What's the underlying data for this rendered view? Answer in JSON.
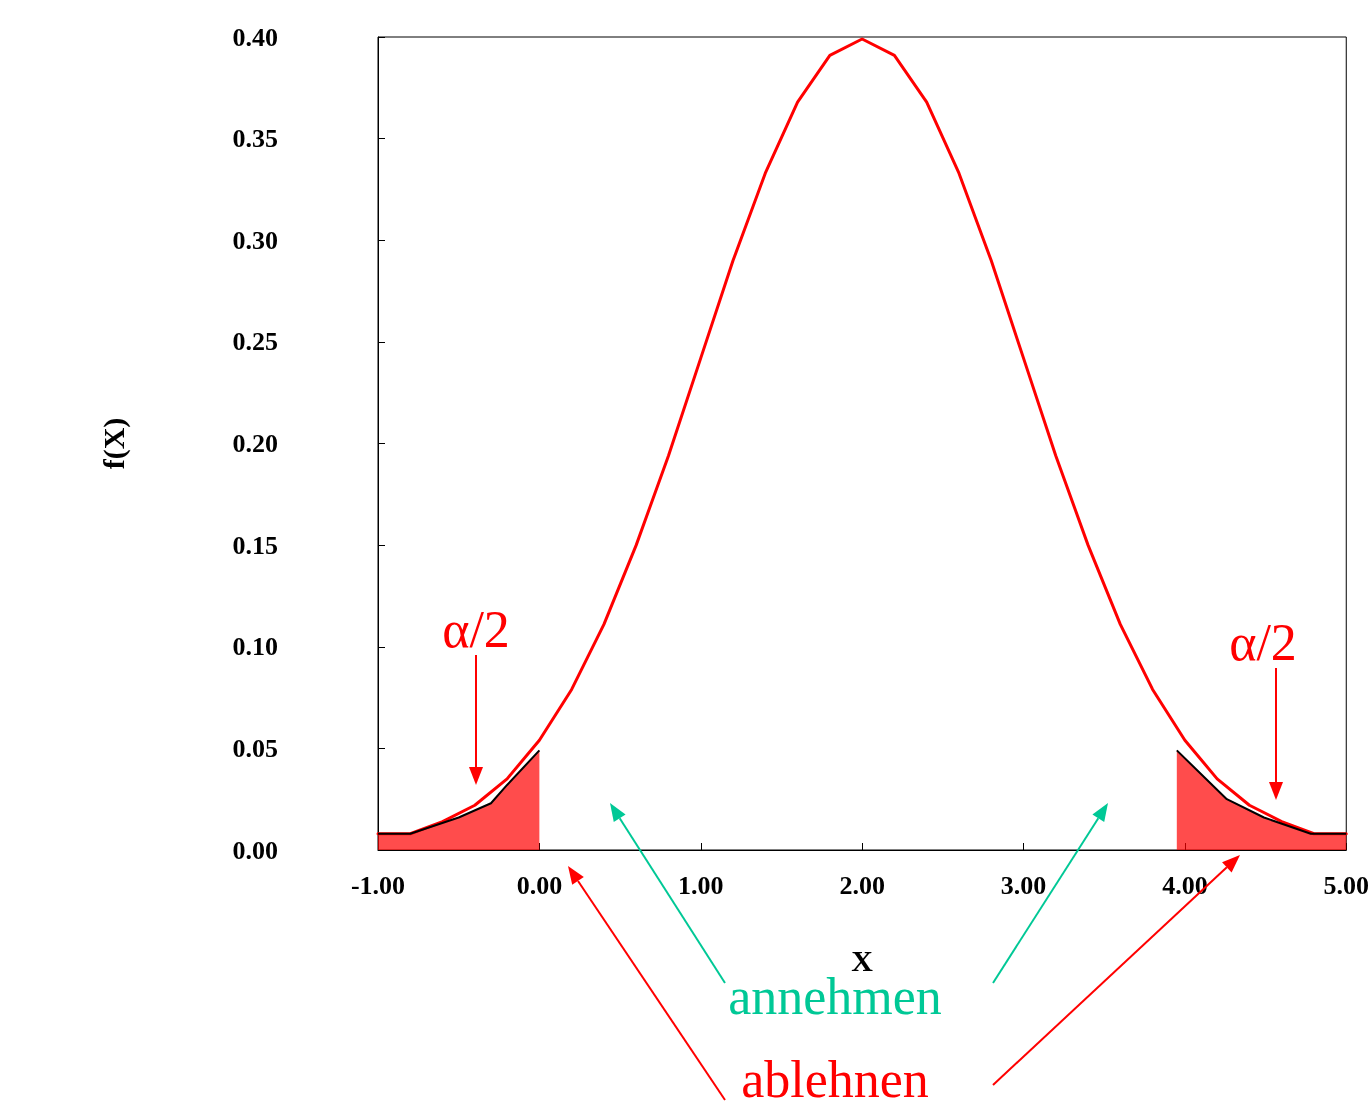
{
  "chart_data": {
    "type": "line",
    "xlabel": "X",
    "ylabel": "f(X)",
    "xlim": [
      -1,
      5
    ],
    "ylim": [
      0,
      0.4
    ],
    "xticks": [
      {
        "value": -1,
        "label": "-1.00"
      },
      {
        "value": 0,
        "label": "0.00"
      },
      {
        "value": 1,
        "label": "1.00"
      },
      {
        "value": 2,
        "label": "2.00"
      },
      {
        "value": 3,
        "label": "3.00"
      },
      {
        "value": 4,
        "label": "4.00"
      },
      {
        "value": 5,
        "label": "5.00"
      }
    ],
    "yticks": [
      {
        "value": 0,
        "label": "0.00"
      },
      {
        "value": 0.05,
        "label": "0.05"
      },
      {
        "value": 0.1,
        "label": "0.10"
      },
      {
        "value": 0.15,
        "label": "0.15"
      },
      {
        "value": 0.2,
        "label": "0.20"
      },
      {
        "value": 0.25,
        "label": "0.25"
      },
      {
        "value": 0.3,
        "label": "0.30"
      },
      {
        "value": 0.35,
        "label": "0.35"
      },
      {
        "value": 0.4,
        "label": "0.40"
      }
    ],
    "grid": false,
    "marker": "none",
    "line_style": "solid",
    "series": [
      {
        "color": "#ff0000",
        "x": [
          -1,
          -0.8,
          -0.6,
          -0.4,
          -0.2,
          0,
          0.2,
          0.4,
          0.6,
          0.8,
          1,
          1.2,
          1.4,
          1.6,
          1.8,
          2,
          2.2,
          2.4,
          2.6,
          2.8,
          3,
          3.2,
          3.4,
          3.6,
          3.8,
          4,
          4.2,
          4.4,
          4.6,
          4.8,
          5
        ],
        "values": [
          0.008,
          0.008,
          0.014,
          0.022,
          0.035,
          0.054,
          0.079,
          0.111,
          0.15,
          0.194,
          0.242,
          0.29,
          0.333,
          0.368,
          0.391,
          0.399,
          0.391,
          0.368,
          0.333,
          0.29,
          0.242,
          0.194,
          0.15,
          0.111,
          0.079,
          0.054,
          0.035,
          0.022,
          0.014,
          0.008,
          0.008
        ]
      },
      {
        "type": "area",
        "color": "#ff0000",
        "x": [
          -1,
          -0.8,
          -0.5,
          -0.3,
          -0.2,
          0
        ],
        "values": [
          0.008,
          0.008,
          0.016,
          0.023,
          0.032,
          0.049
        ]
      },
      {
        "type": "area",
        "color": "#ff0000",
        "x": [
          3.95,
          4.26,
          4.49,
          4.78,
          5
        ],
        "values": [
          0.049,
          0.025,
          0.016,
          0.008,
          0.008
        ]
      }
    ],
    "annotations": [
      "α/2",
      "α/2",
      "annehmen",
      "ablehnen"
    ]
  }
}
